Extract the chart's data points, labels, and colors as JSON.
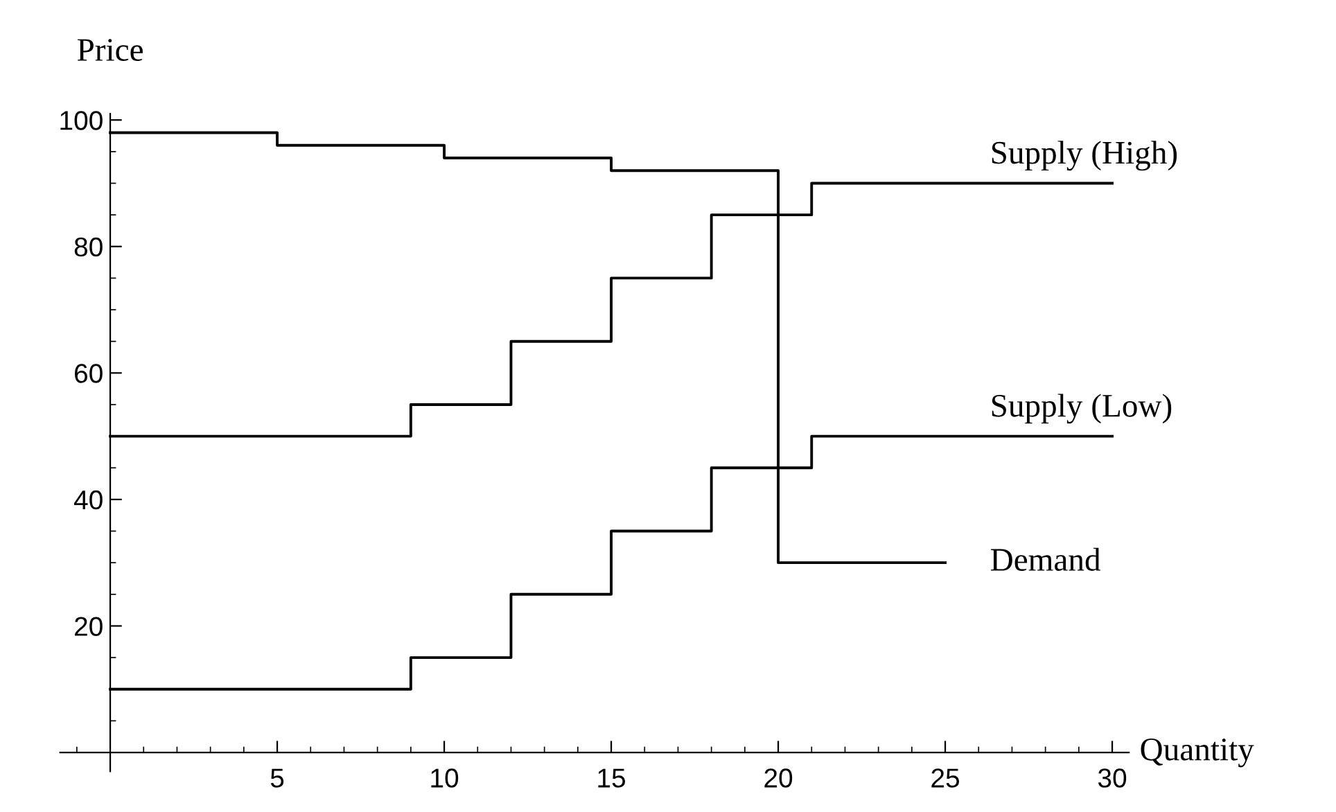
{
  "chart_data": {
    "type": "step",
    "xlabel": "Quantity",
    "ylabel": "Price",
    "series": [
      {
        "name": "Supply (High)",
        "color": "#000000",
        "x": [
          0,
          9,
          12,
          15,
          18,
          21,
          30
        ],
        "values": [
          50,
          55,
          65,
          75,
          85,
          90,
          90
        ]
      },
      {
        "name": "Supply (Low)",
        "color": "#000000",
        "x": [
          0,
          9,
          12,
          15,
          18,
          21,
          30
        ],
        "values": [
          10,
          15,
          25,
          35,
          45,
          50,
          50
        ]
      },
      {
        "name": "Demand",
        "color": "#000000",
        "x": [
          0,
          5,
          10,
          15,
          20,
          25
        ],
        "values": [
          98,
          96,
          94,
          92,
          30,
          30
        ]
      }
    ],
    "xlim": [
      -1.5,
      30.5
    ],
    "ylim": [
      -3,
      101
    ],
    "xticks": [
      5,
      10,
      15,
      20,
      25,
      30
    ],
    "yticks": [
      20,
      40,
      60,
      80,
      100
    ],
    "grid": false,
    "legend": false,
    "marker": "none",
    "line_style": "solid"
  }
}
